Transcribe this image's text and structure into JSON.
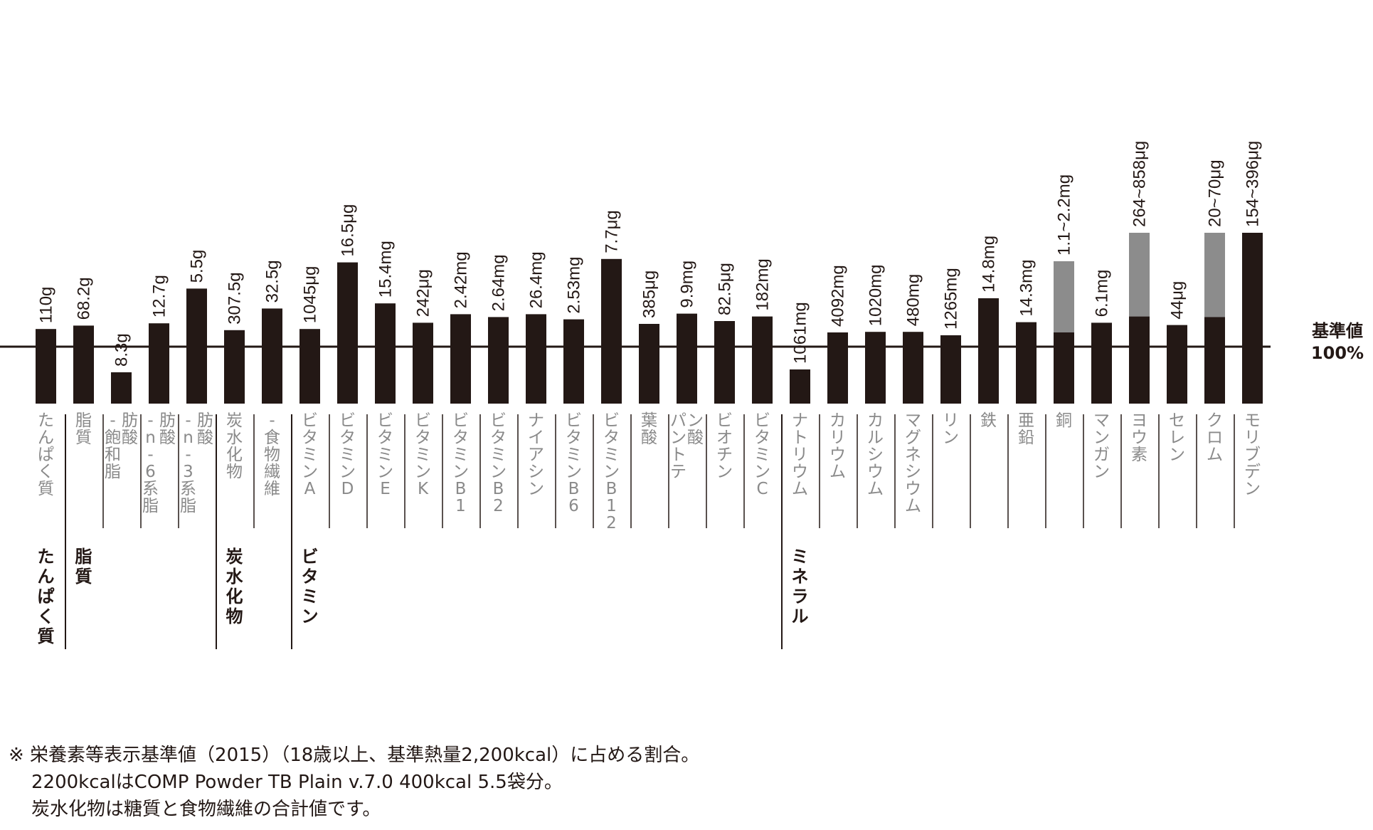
{
  "reference_line": {
    "label_line1": "基準値",
    "label_line2": "100%"
  },
  "chart_data": {
    "type": "bar",
    "title": "",
    "ylabel": "",
    "reference_value_percent": 100,
    "colors": {
      "bar": "#231815",
      "range_upper": "#8c8c8c",
      "text_gray": "#8a8a8a"
    },
    "categories": [
      "たんぱく質",
      "脂質",
      "-飽和脂肪酸",
      "-n-6系脂肪酸",
      "-n-3系脂肪酸",
      "炭水化物",
      "-食物繊維",
      "ビタミンA",
      "ビタミンD",
      "ビタミンE",
      "ビタミンK",
      "ビタミンB1",
      "ビタミンB2",
      "ナイアシン",
      "ビタミンB6",
      "ビタミンB12",
      "葉酸",
      "パントテン酸",
      "ビオチン",
      "ビタミンC",
      "ナトリウム",
      "カリウム",
      "カルシウム",
      "マグネシウム",
      "リン",
      "鉄",
      "亜鉛",
      "銅",
      "マンガン",
      "ヨウ素",
      "セレン",
      "クロム",
      "モリブデン"
    ],
    "amount_labels": [
      "110g",
      "68.2g",
      "8.3g",
      "12.7g",
      "5.5g",
      "307.5g",
      "32.5g",
      "1045μg",
      "16.5μg",
      "15.4mg",
      "242μg",
      "2.42mg",
      "2.64mg",
      "26.4mg",
      "2.53mg",
      "7.7μg",
      "385μg",
      "9.9mg",
      "82.5μg",
      "182mg",
      "1061mg",
      "4092mg",
      "1020mg",
      "480mg",
      "1265mg",
      "14.8mg",
      "14.3mg",
      "1.1~2.2mg",
      "6.1mg",
      "264~858μg",
      "44μg",
      "20~70μg",
      "154~396μg"
    ],
    "values_percent": [
      131,
      137,
      55,
      141,
      202,
      129,
      167,
      131,
      248,
      176,
      142,
      157,
      152,
      157,
      148,
      254,
      140,
      158,
      145,
      153,
      60,
      125,
      126,
      126,
      120,
      185,
      143,
      125,
      142,
      153,
      138,
      152,
      300
    ],
    "range_upper_percent": [
      null,
      null,
      null,
      null,
      null,
      null,
      null,
      null,
      null,
      null,
      null,
      null,
      null,
      null,
      null,
      null,
      null,
      null,
      null,
      null,
      null,
      null,
      null,
      null,
      null,
      null,
      null,
      250,
      null,
      300,
      null,
      300,
      null
    ],
    "broken_top": [
      false,
      false,
      false,
      false,
      false,
      false,
      false,
      false,
      false,
      false,
      false,
      false,
      false,
      false,
      false,
      false,
      false,
      false,
      false,
      false,
      false,
      false,
      false,
      false,
      false,
      false,
      false,
      false,
      false,
      true,
      false,
      true,
      true
    ],
    "label_lines": [
      [
        "たんぱく質"
      ],
      [
        "脂質"
      ],
      [
        "-飽和脂",
        "肪酸"
      ],
      [
        "-n-6系脂",
        "肪酸"
      ],
      [
        "-n-3系脂",
        "肪酸"
      ],
      [
        "炭水化物"
      ],
      [
        "-食物繊維"
      ],
      [
        "ビタミンA"
      ],
      [
        "ビタミンD"
      ],
      [
        "ビタミンE"
      ],
      [
        "ビタミンK"
      ],
      [
        "ビタミンB1"
      ],
      [
        "ビタミンB2"
      ],
      [
        "ナイアシン"
      ],
      [
        "ビタミンB6"
      ],
      [
        "ビタミンB12"
      ],
      [
        "葉酸"
      ],
      [
        "パントテ",
        "ン酸"
      ],
      [
        "ビオチン"
      ],
      [
        "ビタミンC"
      ],
      [
        "ナトリウム"
      ],
      [
        "カリウム"
      ],
      [
        "カルシウム"
      ],
      [
        "マグネシウム"
      ],
      [
        "リン"
      ],
      [
        "鉄"
      ],
      [
        "亜鉛"
      ],
      [
        "銅"
      ],
      [
        "マンガン"
      ],
      [
        "ヨウ素"
      ],
      [
        "セレン"
      ],
      [
        "クロム"
      ],
      [
        "モリブデン"
      ]
    ],
    "groups": [
      {
        "label": "たんぱく質",
        "start": 0,
        "end": 0
      },
      {
        "label": "脂質",
        "start": 1,
        "end": 4
      },
      {
        "label": "炭水化物",
        "start": 5,
        "end": 6
      },
      {
        "label": "ビタミン",
        "start": 7,
        "end": 19
      },
      {
        "label": "ミネラル",
        "start": 20,
        "end": 32
      }
    ]
  },
  "footnote": {
    "line1": "※ 栄養素等表示基準値（2015）（18歳以上、基準熱量2,200kcal）に占める割合。",
    "line2": "2200kcalはCOMP Powder TB Plain v.7.0 400kcal 5.5袋分。",
    "line3": "炭水化物は糖質と食物繊維の合計値です。"
  }
}
